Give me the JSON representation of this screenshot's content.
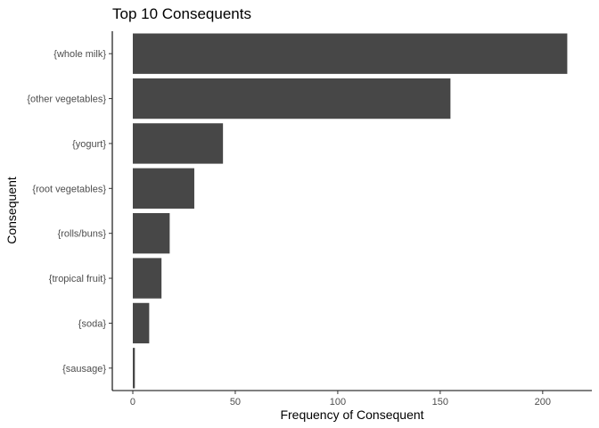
{
  "chart_data": {
    "type": "bar",
    "orientation": "horizontal",
    "title": "Top 10 Consequents",
    "xlabel": "Frequency of Consequent",
    "ylabel": "Consequent",
    "categories": [
      "{whole milk}",
      "{other vegetables}",
      "{yogurt}",
      "{root vegetables}",
      "{rolls/buns}",
      "{tropical fruit}",
      "{soda}",
      "{sausage}"
    ],
    "values": [
      212,
      155,
      44,
      30,
      18,
      14,
      8,
      1
    ],
    "xlim": [
      -10,
      224
    ],
    "xticks": [
      0,
      50,
      100,
      150,
      200
    ],
    "grid": false,
    "bar_color": "#474747"
  }
}
